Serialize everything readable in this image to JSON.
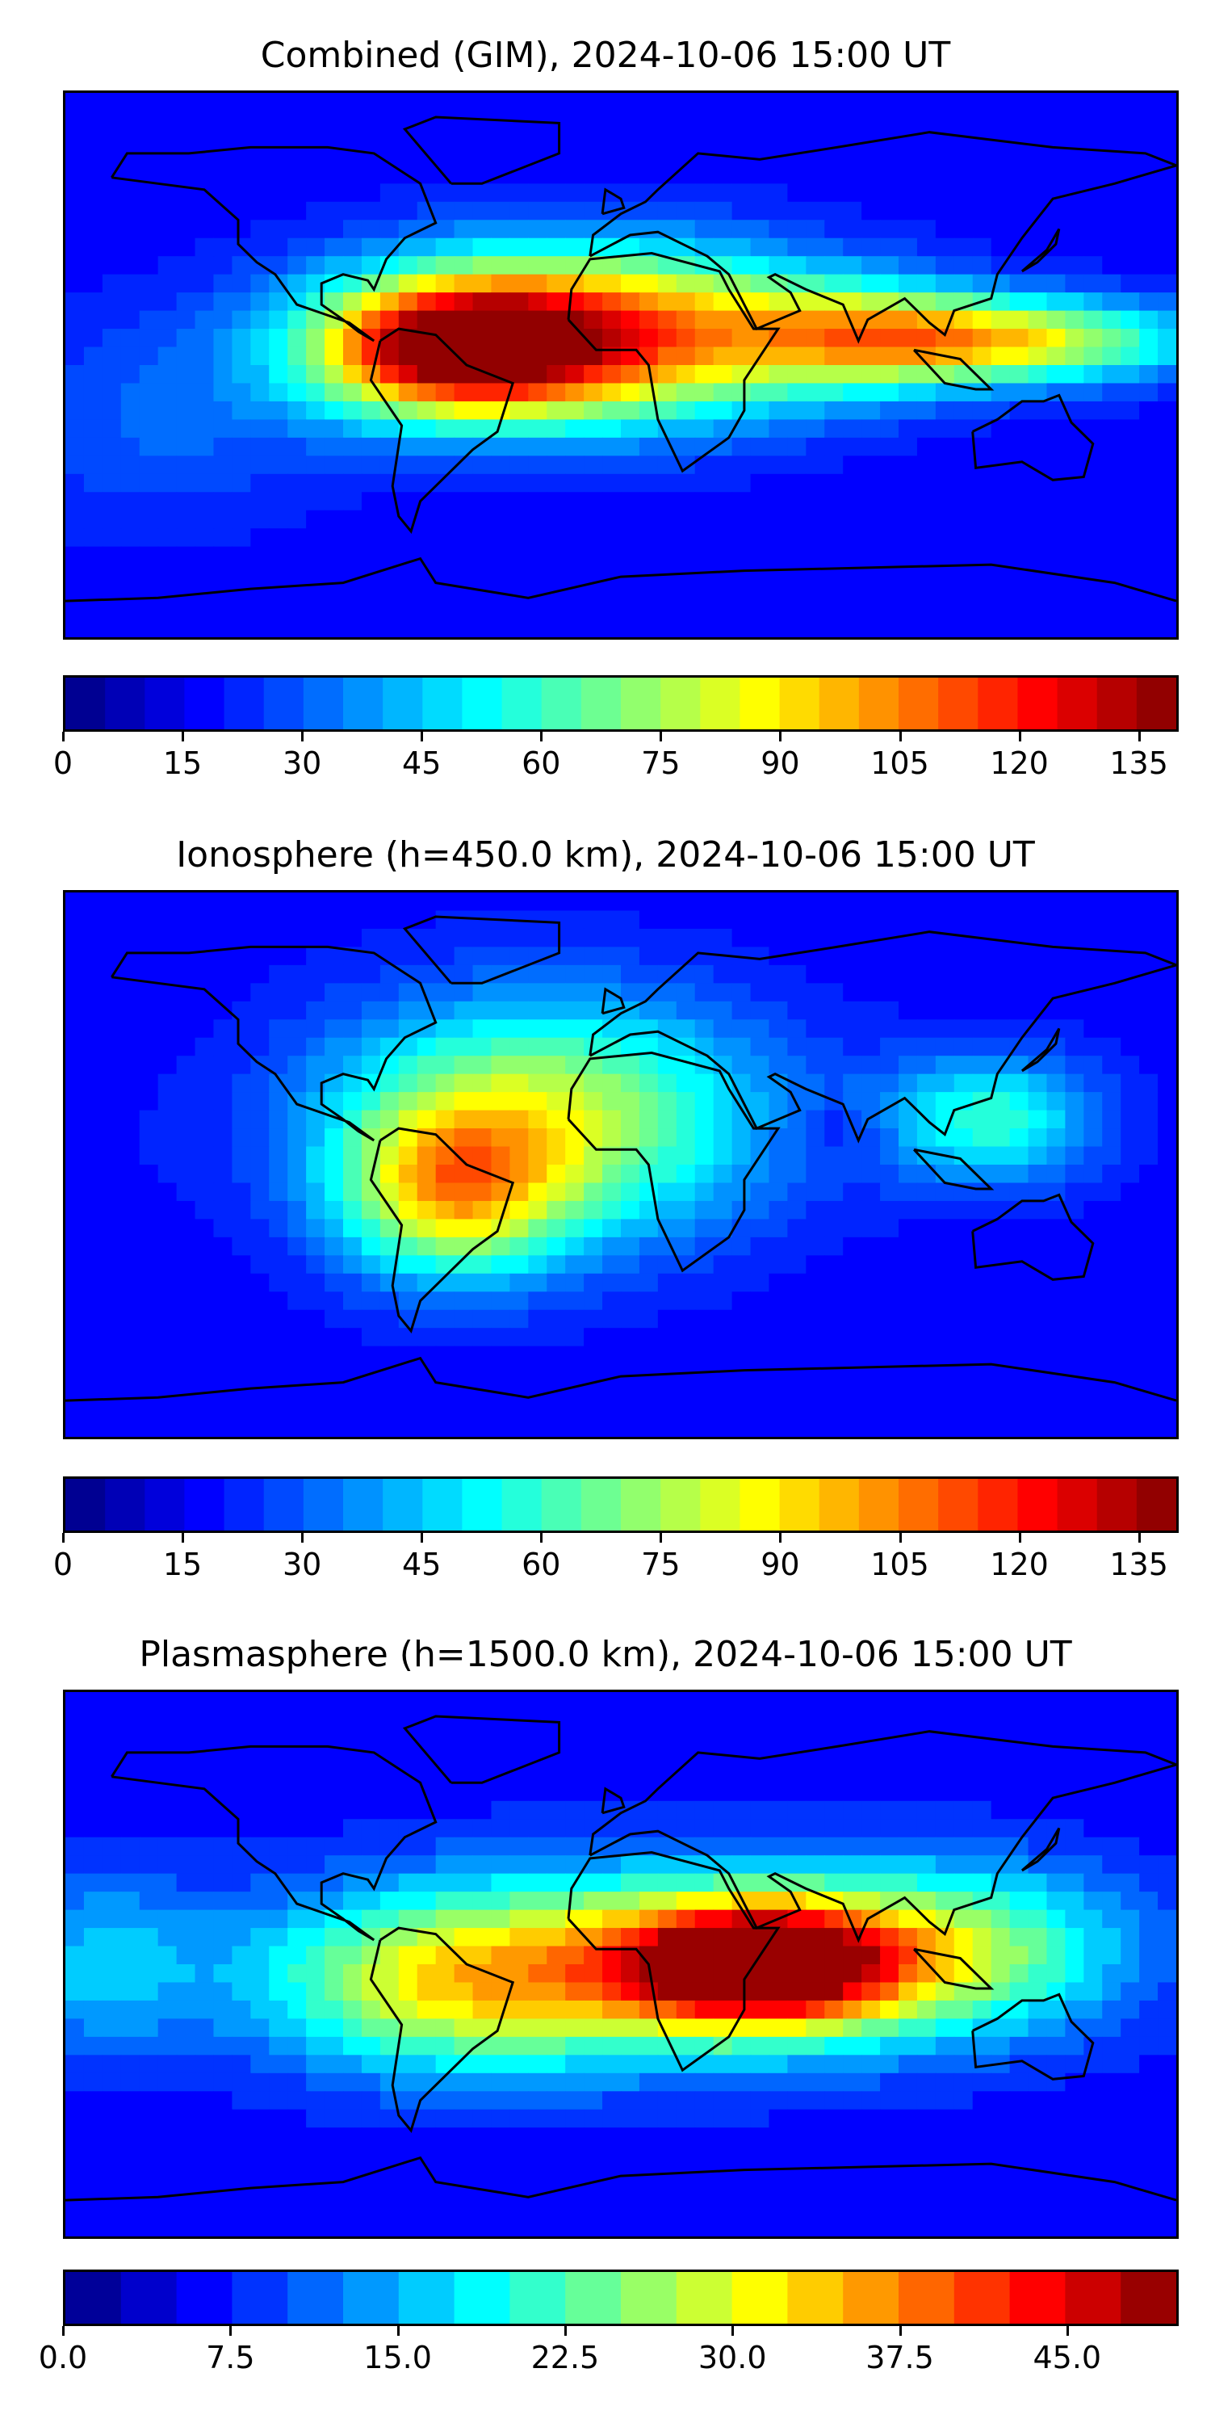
{
  "chart_data": [
    {
      "type": "heatmap",
      "subtype": "global-contour-map",
      "title": "Combined (GIM), 2024-10-06 15:00 UT",
      "colormap": "jet",
      "levels": [
        0,
        5,
        10,
        15,
        20,
        25,
        30,
        35,
        40,
        45,
        50,
        55,
        60,
        65,
        70,
        75,
        80,
        85,
        90,
        95,
        100,
        105,
        110,
        115,
        120,
        125,
        130,
        135,
        140
      ],
      "colorbar_range": [
        0,
        140
      ],
      "colorbar_ticks": [
        "0",
        "15",
        "30",
        "45",
        "60",
        "75",
        "90",
        "105",
        "120",
        "135"
      ],
      "colorbar_tick_values": [
        0,
        15,
        30,
        45,
        60,
        75,
        90,
        105,
        120,
        135
      ],
      "xlim": [
        -180,
        180
      ],
      "ylim": [
        -90,
        90
      ],
      "field": [
        {
          "lon": -10,
          "lat": 10,
          "value": 115,
          "sx": 55,
          "sy": 20
        },
        {
          "lon": -55,
          "lat": 5,
          "value": 100,
          "sx": 30,
          "sy": 15
        },
        {
          "lon": 130,
          "lat": 8,
          "value": 80,
          "sx": 40,
          "sy": 10
        },
        {
          "lon": 80,
          "lat": 10,
          "value": 60,
          "sx": 30,
          "sy": 12
        },
        {
          "lon": -150,
          "lat": -20,
          "value": 30,
          "sx": 40,
          "sy": 25
        }
      ]
    },
    {
      "type": "heatmap",
      "subtype": "global-contour-map",
      "title": "Ionosphere  (h=450.0 km), 2024-10-06 15:00 UT",
      "colormap": "jet",
      "levels": [
        0,
        5,
        10,
        15,
        20,
        25,
        30,
        35,
        40,
        45,
        50,
        55,
        60,
        65,
        70,
        75,
        80,
        85,
        90,
        95,
        100,
        105,
        110,
        115,
        120,
        125,
        130,
        135,
        140
      ],
      "colorbar_range": [
        0,
        140
      ],
      "colorbar_ticks": [
        "0",
        "15",
        "30",
        "45",
        "60",
        "75",
        "90",
        "105",
        "120",
        "135"
      ],
      "colorbar_tick_values": [
        0,
        15,
        30,
        45,
        60,
        75,
        90,
        105,
        120,
        135
      ],
      "xlim": [
        -180,
        180
      ],
      "ylim": [
        -90,
        90
      ],
      "field": [
        {
          "lon": -25,
          "lat": 15,
          "value": 80,
          "sx": 50,
          "sy": 28
        },
        {
          "lon": -55,
          "lat": -10,
          "value": 72,
          "sx": 25,
          "sy": 20
        },
        {
          "lon": 120,
          "lat": 15,
          "value": 58,
          "sx": 25,
          "sy": 15
        },
        {
          "lon": 70,
          "lat": 12,
          "value": 8,
          "sx": 12,
          "sy": 6
        },
        {
          "lon": -160,
          "lat": 0,
          "value": 18,
          "sx": 15,
          "sy": 20
        }
      ]
    },
    {
      "type": "heatmap",
      "subtype": "global-contour-map",
      "title": "Plasmasphere (h=1500.0 km), 2024-10-06 15:00 UT",
      "colormap": "jet",
      "levels": [
        0.0,
        2.5,
        5.0,
        7.5,
        10.0,
        12.5,
        15.0,
        17.5,
        20.0,
        22.5,
        25.0,
        27.5,
        30.0,
        32.5,
        35.0,
        37.5,
        40.0,
        42.5,
        45.0,
        47.5,
        50.0
      ],
      "colorbar_range": [
        0,
        50
      ],
      "colorbar_ticks": [
        "0.0",
        "7.5",
        "15.0",
        "22.5",
        "30.0",
        "37.5",
        "45.0"
      ],
      "colorbar_tick_values": [
        0,
        7.5,
        15,
        22.5,
        30,
        37.5,
        45
      ],
      "xlim": [
        -180,
        180
      ],
      "ylim": [
        -90,
        90
      ],
      "field": [
        {
          "lon": 45,
          "lat": 0,
          "value": 42,
          "sx": 30,
          "sy": 14
        },
        {
          "lon": 0,
          "lat": 0,
          "value": 30,
          "sx": 70,
          "sy": 22
        },
        {
          "lon": 110,
          "lat": 5,
          "value": 22,
          "sx": 40,
          "sy": 20
        },
        {
          "lon": -60,
          "lat": -10,
          "value": 18,
          "sx": 40,
          "sy": 20
        },
        {
          "lon": -170,
          "lat": 0,
          "value": 15,
          "sx": 25,
          "sy": 22
        }
      ]
    }
  ]
}
